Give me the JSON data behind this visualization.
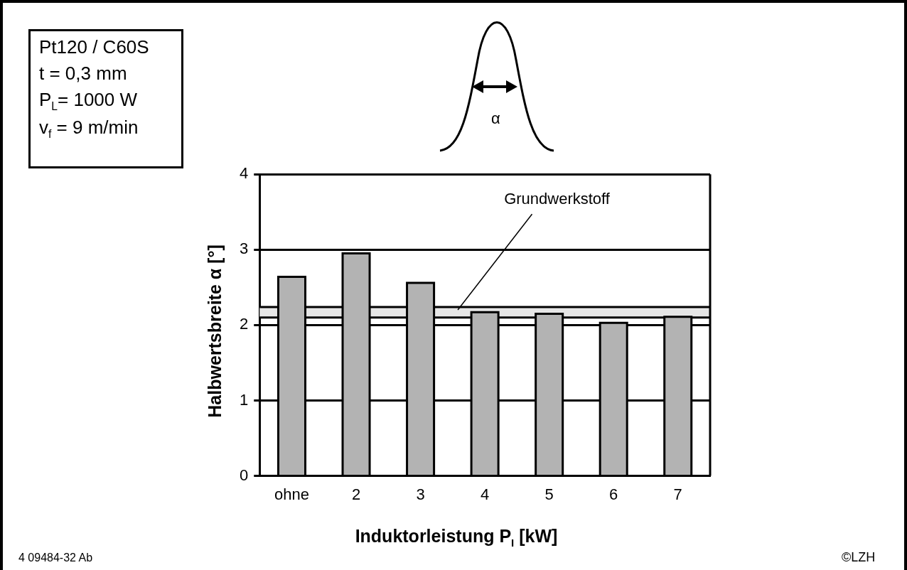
{
  "chart_data": {
    "type": "bar",
    "categories": [
      "ohne",
      "2",
      "3",
      "4",
      "5",
      "6",
      "7"
    ],
    "values": [
      2.64,
      2.95,
      2.56,
      2.17,
      2.15,
      2.03,
      2.11
    ],
    "color": "#b3b3b3",
    "xlabel": "Induktorleistung P$_{I}$ [kW]",
    "ylabel": "Halbwertsbreite α [°]",
    "ylim": [
      0,
      4
    ],
    "yticks": [
      0,
      1,
      2,
      3,
      4
    ],
    "grid": "y",
    "legend": false,
    "bands": [
      {
        "axis": "y",
        "from": 2.1,
        "to": 2.24,
        "label": "Grundwerkstoff",
        "color": "#e6e6e6"
      }
    ],
    "annotations": [
      "Pt120 / C60S",
      "t = 0,3 mm",
      "P$_{L}$= 1000 W",
      "v$_{f}$ = 9 m/min",
      "α",
      "4 09484-32 Ab",
      "©LZH"
    ]
  }
}
